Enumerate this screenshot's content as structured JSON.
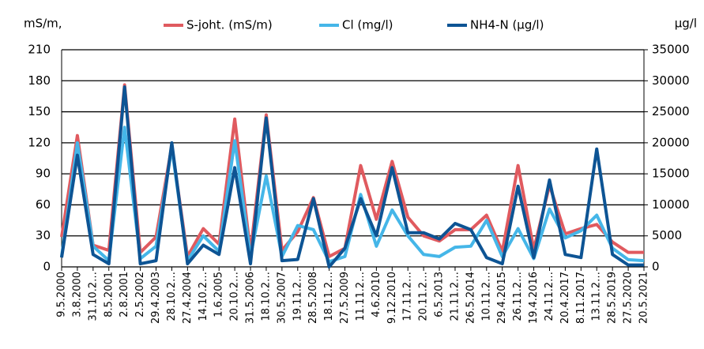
{
  "chart_data": {
    "type": "line",
    "y_label": "mS/m,",
    "y2_label": "µg/l",
    "categories": [
      "9.5.2000",
      "3.8.2000",
      "31.10.2…",
      "8.5.2001",
      "2.8.2001",
      "2.5.2002",
      "29.4.2003",
      "28.10.2…",
      "27.4.2004",
      "14.10.2…",
      "1.6.2005",
      "20.10.2…",
      "31.5.2006",
      "18.10.2…",
      "30.5.2007",
      "19.11.2…",
      "28.5.2008",
      "18.11.2…",
      "27.5.2009",
      "11.11.2…",
      "4.6.2010",
      "9.12.2010",
      "17.11.2…",
      "20.11.2…",
      "6.5.2013",
      "21.11.2…",
      "26.5.2014",
      "10.11.2…",
      "29.4.2015",
      "26.11.2…",
      "19.4.2016",
      "24.11.2…",
      "20.4.2017",
      "8.11.2017",
      "13.11.2…",
      "28.5.2019",
      "27.5.2020",
      "20.5.2021"
    ],
    "series": [
      {
        "name": "S-joht. (mS/m)",
        "color": "#e05a5f",
        "values": [
          29,
          127,
          21,
          16,
          176,
          14,
          29,
          117,
          10,
          37,
          22,
          143,
          14,
          147,
          16,
          34,
          67,
          10,
          18,
          98,
          46,
          102,
          48,
          30,
          25,
          36,
          36,
          50,
          15,
          98,
          17,
          79,
          32,
          37,
          41,
          24,
          14,
          14
        ]
      },
      {
        "name": "Cl (mg/l)",
        "color": "#45b6e8",
        "values": [
          10,
          120,
          20,
          6,
          135,
          8,
          20,
          115,
          6,
          30,
          15,
          122,
          10,
          88,
          10,
          40,
          36,
          5,
          10,
          70,
          20,
          55,
          30,
          12,
          10,
          19,
          20,
          45,
          10,
          37,
          8,
          56,
          28,
          35,
          50,
          18,
          7,
          6
        ]
      },
      {
        "name": "NH4-N (µg/l)",
        "color": "#0d5494",
        "axis": "y2",
        "values": [
          1500,
          18000,
          2000,
          500,
          29000,
          500,
          1000,
          20000,
          500,
          3500,
          2000,
          16000,
          500,
          24000,
          1000,
          1200,
          11000,
          0,
          3000,
          11000,
          5000,
          16000,
          5500,
          5500,
          4500,
          7000,
          6000,
          1500,
          500,
          13000,
          1500,
          14000,
          2000,
          1500,
          19000,
          2000,
          300,
          300
        ]
      }
    ],
    "ylim": [
      0,
      210
    ],
    "yticks": [
      0,
      30,
      60,
      90,
      120,
      150,
      180,
      210
    ],
    "y2lim": [
      0,
      35000
    ],
    "y2ticks": [
      0,
      5000,
      10000,
      15000,
      20000,
      25000,
      30000,
      35000
    ],
    "grid": true,
    "legend": "top"
  }
}
